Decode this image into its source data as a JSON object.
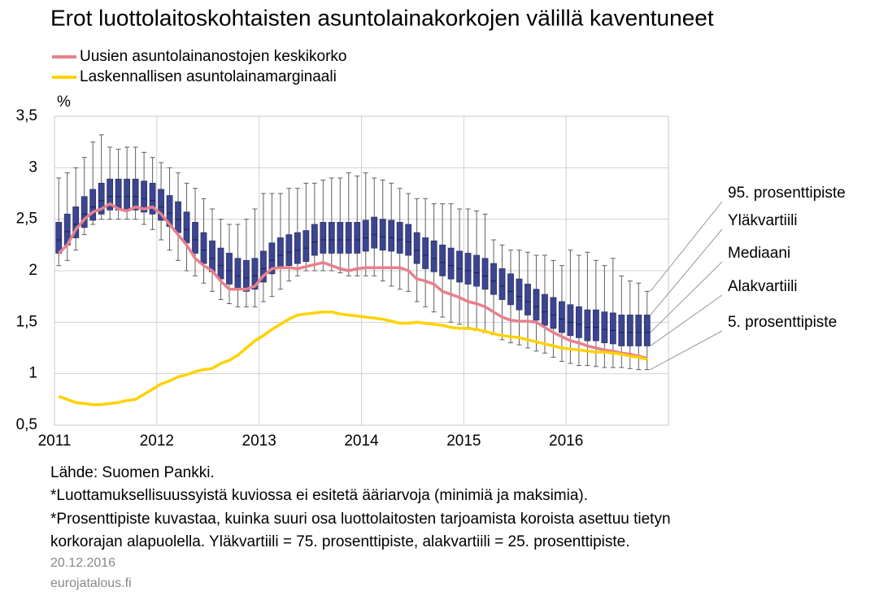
{
  "chart_data": {
    "type": "box",
    "title": "Erot luottolaitoskohtaisten asuntolainakorkojen välillä kaventuneet",
    "y_label": "%",
    "categories": [
      "2011",
      null,
      null,
      null,
      null,
      null,
      null,
      null,
      null,
      null,
      null,
      null,
      "2012",
      null,
      null,
      null,
      null,
      null,
      null,
      null,
      null,
      null,
      null,
      null,
      "2013",
      null,
      null,
      null,
      null,
      null,
      null,
      null,
      null,
      null,
      null,
      null,
      "2014",
      null,
      null,
      null,
      null,
      null,
      null,
      null,
      null,
      null,
      null,
      null,
      "2015",
      null,
      null,
      null,
      null,
      null,
      null,
      null,
      null,
      null,
      null,
      null,
      "2016",
      null,
      null,
      null,
      null,
      null,
      null,
      null,
      null,
      null,
      null,
      null
    ],
    "box_color": "#3c4590",
    "p95": [
      2.9,
      2.95,
      3.0,
      3.1,
      3.25,
      3.32,
      3.2,
      3.18,
      3.2,
      3.2,
      3.15,
      3.1,
      3.05,
      3.0,
      2.95,
      2.85,
      2.8,
      2.7,
      2.6,
      2.5,
      2.45,
      2.45,
      2.5,
      2.6,
      2.75,
      2.75,
      2.75,
      2.8,
      2.8,
      2.85,
      2.85,
      2.88,
      2.9,
      2.9,
      2.95,
      2.92,
      2.95,
      2.9,
      2.88,
      2.85,
      2.8,
      2.75,
      2.7,
      2.7,
      2.65,
      2.65,
      2.65,
      2.6,
      2.6,
      2.58,
      2.55,
      2.3,
      2.25,
      2.2,
      2.2,
      2.18,
      2.15,
      2.15,
      2.1,
      2.05,
      2.2,
      2.15,
      2.18,
      2.1,
      2.05,
      2.12,
      1.95,
      1.9,
      1.88,
      1.8,
      null,
      null
    ],
    "q3": [
      2.47,
      2.55,
      2.62,
      2.72,
      2.79,
      2.85,
      2.89,
      2.89,
      2.89,
      2.89,
      2.87,
      2.85,
      2.79,
      2.73,
      2.67,
      2.57,
      2.47,
      2.37,
      2.29,
      2.22,
      2.17,
      2.12,
      2.1,
      2.12,
      2.19,
      2.27,
      2.32,
      2.35,
      2.37,
      2.39,
      2.45,
      2.47,
      2.47,
      2.47,
      2.47,
      2.47,
      2.49,
      2.52,
      2.5,
      2.49,
      2.47,
      2.45,
      2.37,
      2.32,
      2.29,
      2.25,
      2.22,
      2.19,
      2.17,
      2.15,
      2.12,
      2.07,
      2.02,
      1.97,
      1.92,
      1.87,
      1.82,
      1.77,
      1.74,
      1.7,
      1.67,
      1.65,
      1.62,
      1.62,
      1.6,
      1.59,
      1.57,
      1.57,
      1.57,
      1.57,
      null,
      null
    ],
    "median": [
      2.3,
      2.38,
      2.45,
      2.55,
      2.62,
      2.68,
      2.72,
      2.72,
      2.72,
      2.72,
      2.7,
      2.68,
      2.62,
      2.56,
      2.5,
      2.4,
      2.3,
      2.2,
      2.12,
      2.05,
      2.0,
      1.95,
      1.93,
      1.95,
      2.02,
      2.1,
      2.15,
      2.18,
      2.2,
      2.22,
      2.28,
      2.3,
      2.3,
      2.3,
      2.3,
      2.3,
      2.32,
      2.35,
      2.33,
      2.32,
      2.3,
      2.28,
      2.2,
      2.15,
      2.12,
      2.08,
      2.05,
      2.02,
      2.0,
      1.98,
      1.95,
      1.9,
      1.85,
      1.8,
      1.75,
      1.7,
      1.65,
      1.6,
      1.57,
      1.53,
      1.5,
      1.48,
      1.45,
      1.45,
      1.43,
      1.42,
      1.4,
      1.4,
      1.4,
      1.4,
      null,
      null
    ],
    "q1": [
      2.17,
      2.25,
      2.32,
      2.42,
      2.49,
      2.55,
      2.59,
      2.59,
      2.59,
      2.59,
      2.57,
      2.55,
      2.49,
      2.43,
      2.37,
      2.27,
      2.17,
      2.07,
      1.99,
      1.92,
      1.87,
      1.82,
      1.8,
      1.82,
      1.89,
      1.97,
      2.02,
      2.05,
      2.07,
      2.09,
      2.15,
      2.17,
      2.17,
      2.17,
      2.17,
      2.17,
      2.19,
      2.22,
      2.2,
      2.19,
      2.17,
      2.15,
      2.07,
      2.02,
      1.99,
      1.95,
      1.92,
      1.89,
      1.87,
      1.85,
      1.82,
      1.77,
      1.72,
      1.67,
      1.62,
      1.57,
      1.52,
      1.47,
      1.44,
      1.4,
      1.37,
      1.35,
      1.32,
      1.32,
      1.3,
      1.29,
      1.27,
      1.27,
      1.27,
      1.27,
      null,
      null
    ],
    "p5": [
      2.05,
      2.1,
      2.2,
      2.35,
      2.45,
      2.5,
      2.5,
      2.5,
      2.5,
      2.5,
      2.45,
      2.4,
      2.3,
      2.2,
      2.1,
      2.0,
      1.95,
      1.88,
      1.8,
      1.72,
      1.68,
      1.65,
      1.65,
      1.65,
      1.7,
      1.75,
      1.82,
      1.9,
      1.95,
      2.0,
      2.0,
      2.0,
      2.0,
      1.98,
      1.95,
      1.95,
      1.95,
      1.95,
      1.9,
      1.85,
      1.82,
      1.8,
      1.7,
      1.65,
      1.6,
      1.55,
      1.5,
      1.48,
      1.45,
      1.42,
      1.4,
      1.38,
      1.33,
      1.3,
      1.28,
      1.25,
      1.22,
      1.2,
      1.16,
      1.12,
      1.1,
      1.08,
      1.08,
      1.07,
      1.06,
      1.06,
      1.06,
      1.05,
      1.04,
      1.04,
      null,
      null
    ],
    "series": [
      {
        "name": "Uusien asuntolainanostojen keskikorko",
        "color": "#e8808c",
        "values": [
          2.17,
          2.25,
          2.4,
          2.5,
          2.57,
          2.6,
          2.65,
          2.6,
          2.58,
          2.62,
          2.6,
          2.62,
          2.55,
          2.45,
          2.35,
          2.25,
          2.12,
          2.05,
          2.0,
          1.9,
          1.82,
          1.82,
          1.82,
          1.85,
          1.95,
          2.02,
          2.03,
          2.03,
          2.02,
          2.04,
          2.06,
          2.08,
          2.05,
          2.02,
          2.0,
          2.02,
          2.03,
          2.03,
          2.03,
          2.03,
          2.03,
          2.0,
          1.92,
          1.9,
          1.87,
          1.8,
          1.77,
          1.74,
          1.7,
          1.68,
          1.65,
          1.6,
          1.55,
          1.52,
          1.51,
          1.51,
          1.5,
          1.45,
          1.4,
          1.36,
          1.32,
          1.3,
          1.27,
          1.25,
          1.23,
          1.22,
          1.2,
          1.19,
          1.17,
          1.15,
          null,
          null
        ]
      },
      {
        "name": "Laskennallisen asuntolainamarginaali",
        "color": "#ffd200",
        "values": [
          0.78,
          0.75,
          0.72,
          0.71,
          0.7,
          0.7,
          0.71,
          0.72,
          0.74,
          0.75,
          0.8,
          0.85,
          0.9,
          0.93,
          0.97,
          0.99,
          1.02,
          1.04,
          1.05,
          1.1,
          1.13,
          1.18,
          1.25,
          1.32,
          1.37,
          1.43,
          1.48,
          1.53,
          1.57,
          1.58,
          1.59,
          1.6,
          1.6,
          1.58,
          1.57,
          1.56,
          1.55,
          1.54,
          1.53,
          1.51,
          1.49,
          1.49,
          1.5,
          1.49,
          1.48,
          1.47,
          1.45,
          1.44,
          1.44,
          1.43,
          1.41,
          1.39,
          1.37,
          1.36,
          1.35,
          1.33,
          1.31,
          1.29,
          1.27,
          1.25,
          1.24,
          1.23,
          1.22,
          1.21,
          1.21,
          1.2,
          1.19,
          1.17,
          1.16,
          1.14,
          null,
          null
        ]
      }
    ],
    "ylim": [
      0.5,
      3.5
    ],
    "yticks": [
      {
        "value": 0.5,
        "label": "0,5"
      },
      1,
      {
        "value": 1.5,
        "label": "1,5"
      },
      2,
      {
        "value": 2.5,
        "label": "2,5"
      },
      3,
      {
        "value": 3.5,
        "label": "3,5"
      }
    ],
    "grid": true,
    "annotations": [
      "95. prosenttipiste",
      "Yläkvartiili",
      "Mediaani",
      "Alakvartiili",
      "5. prosenttipiste"
    ],
    "source": "Lähde: Suomen Pankki.",
    "notes": [
      "*Luottamuksellisuussyistä kuviossa ei esitetä ääriarvoja (minimiä ja maksimia).",
      "*Prosenttipiste kuvastaa, kuinka suuri osa luottolaitosten tarjoamista koroista asettuu tietyn",
      "korkorajan alapuolella. Yläkvartiili = 75. prosenttipiste, alakvartiili = 25. prosenttipiste."
    ],
    "date": "20.12.2016",
    "site": "eurojatalous.fi"
  }
}
